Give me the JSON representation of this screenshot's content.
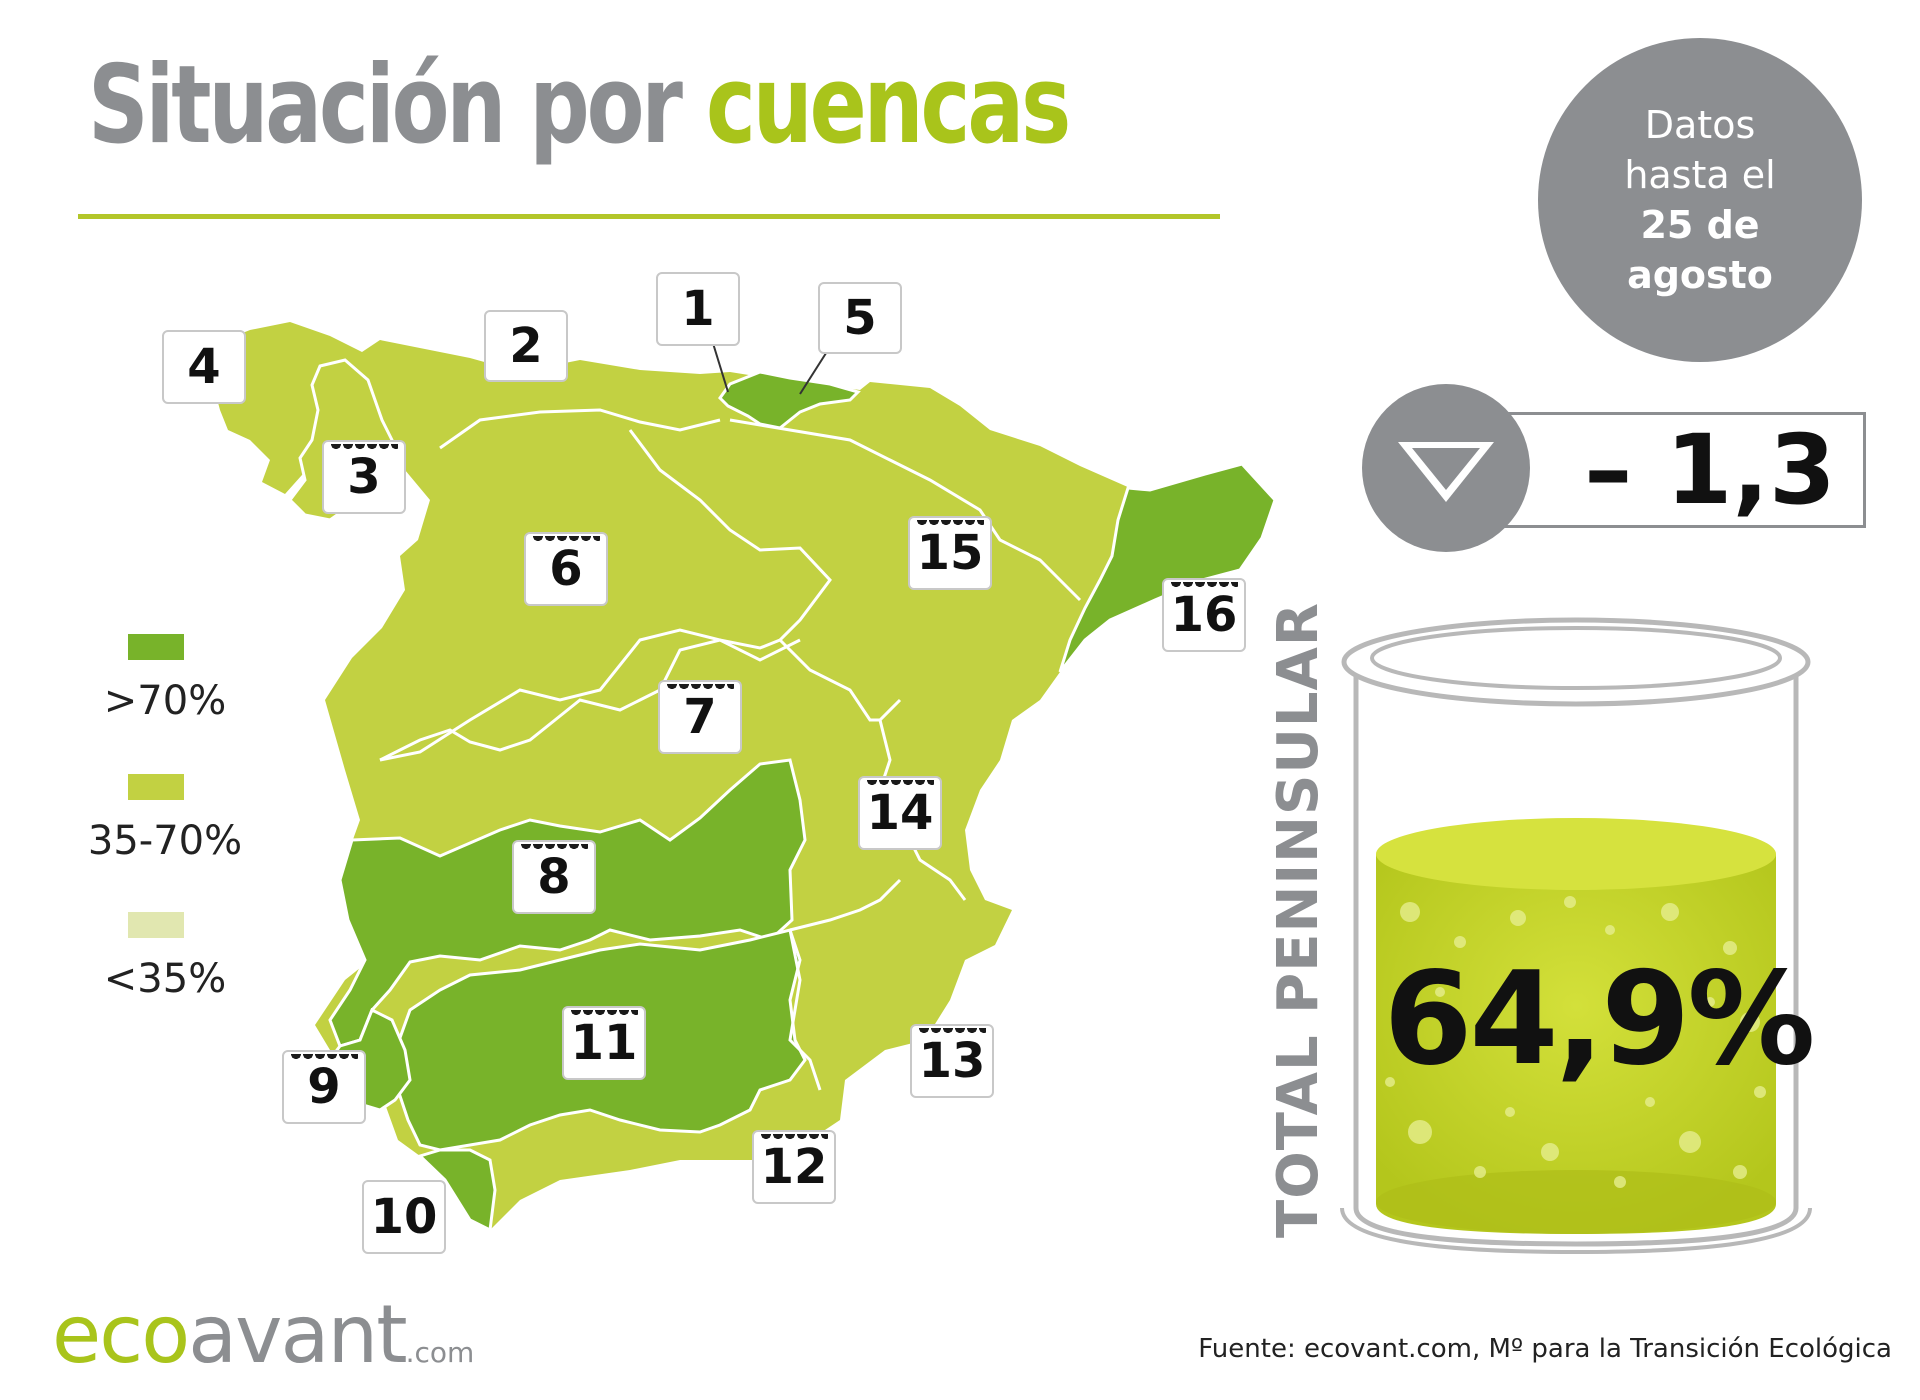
{
  "header": {
    "title_part1": "Situación por",
    "title_part2": "cuencas"
  },
  "date_badge": {
    "line1": "Datos",
    "line2": "hasta el",
    "line3": "25 de",
    "line4": "agosto"
  },
  "weekly_change": {
    "direction": "down",
    "value": "– 1,3",
    "icon": "triangle-down-icon"
  },
  "total": {
    "label": "TOTAL PENINSULAR",
    "value": "64,9%",
    "fill_fraction": 0.649
  },
  "legend": [
    {
      "label": ">70%",
      "color": "#78b32a"
    },
    {
      "label": "35-70%",
      "color": "#c2d142"
    },
    {
      "label": "<35%",
      "color": "#e1e7b0"
    }
  ],
  "basins": [
    {
      "id": "1",
      "category": ">70%"
    },
    {
      "id": "2",
      "category": "35-70%"
    },
    {
      "id": "3",
      "category": "35-70%"
    },
    {
      "id": "4",
      "category": "35-70%"
    },
    {
      "id": "5",
      "category": ">70%"
    },
    {
      "id": "6",
      "category": "35-70%"
    },
    {
      "id": "7",
      "category": "35-70%"
    },
    {
      "id": "8",
      "category": ">70%"
    },
    {
      "id": "9",
      "category": ">70%"
    },
    {
      "id": "10",
      "category": ">70%"
    },
    {
      "id": "11",
      "category": ">70%"
    },
    {
      "id": "12",
      "category": "35-70%"
    },
    {
      "id": "13",
      "category": "35-70%"
    },
    {
      "id": "14",
      "category": "35-70%"
    },
    {
      "id": "15",
      "category": "35-70%"
    },
    {
      "id": "16",
      "category": ">70%"
    }
  ],
  "colors": {
    "brand_green": "#a9c41b",
    "gray": "#8c8e91",
    "high": "#78b32a",
    "mid": "#c2d142",
    "low": "#e1e7b0"
  },
  "footer": {
    "logo_part1": "eco",
    "logo_part2": "avant",
    "logo_part3": ".com",
    "source": "Fuente: ecovant.com, Mº para la Transición Ecológica"
  }
}
